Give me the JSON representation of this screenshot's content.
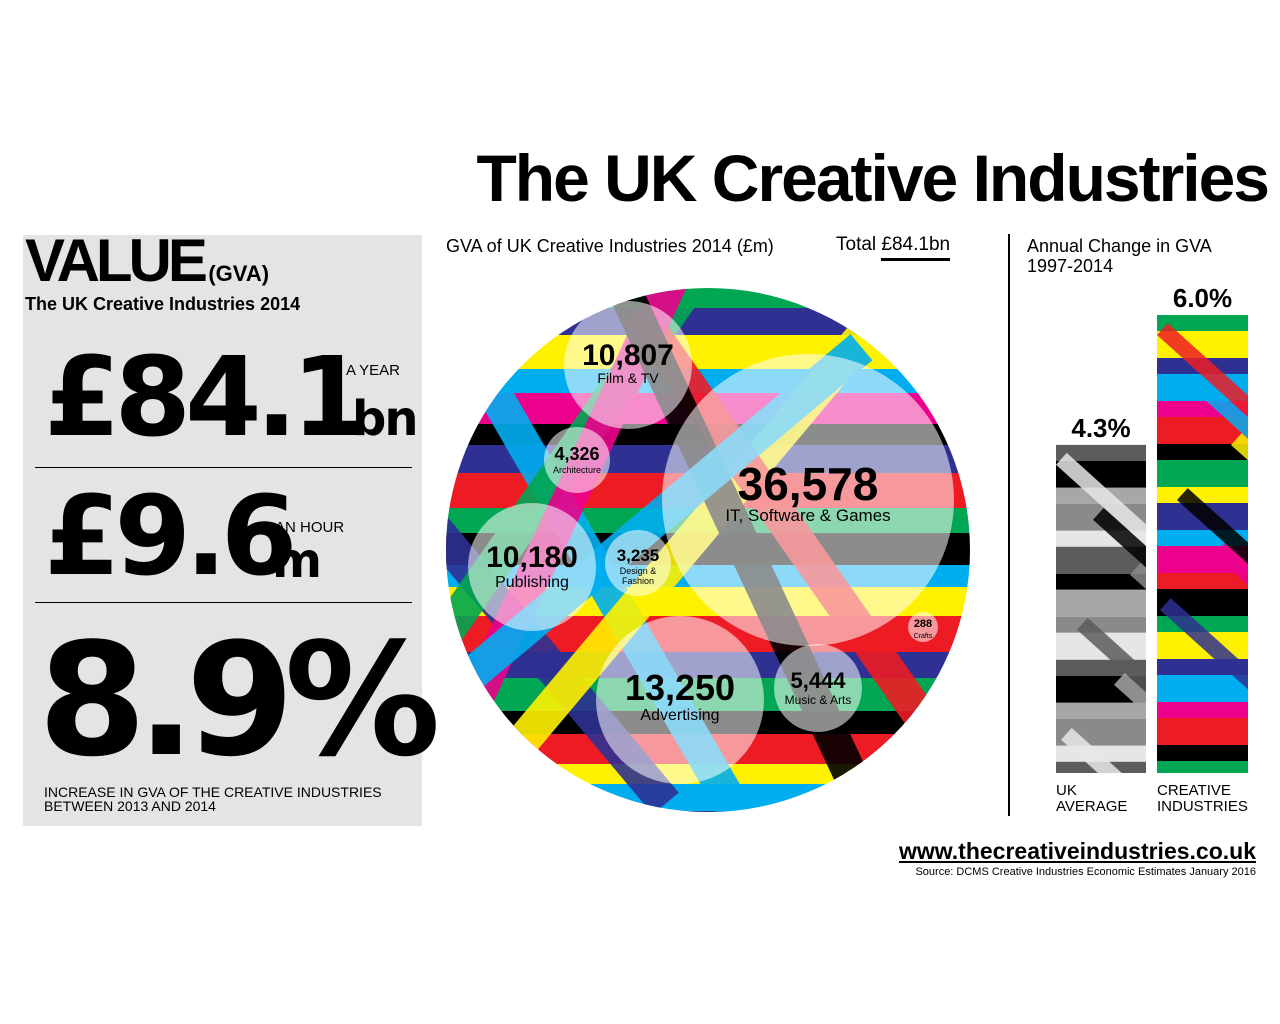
{
  "title": "The UK Creative Industries",
  "value_panel": {
    "heading": "VALUE",
    "heading_suffix": "(GVA)",
    "subheading": "The UK Creative Industries 2014",
    "stat1": {
      "value": "£84.1",
      "unit": "bn",
      "label": "A YEAR"
    },
    "stat2": {
      "value": "£9.6",
      "unit": "m",
      "label": "AN HOUR"
    },
    "stat3": {
      "value": "8.9%",
      "caption_line1": "INCREASE IN GVA OF THE CREATIVE INDUSTRIES",
      "caption_line2": "BETWEEN 2013 AND 2014"
    }
  },
  "chart_data": [
    {
      "type": "bubble",
      "title": "GVA of UK Creative Industries 2014 (£m)",
      "total_prefix": "Total",
      "total_value": "£84.1bn",
      "items": [
        {
          "label": "IT, Software & Games",
          "value": 36578,
          "value_label": "36,578"
        },
        {
          "label": "Advertising",
          "value": 13250,
          "value_label": "13,250"
        },
        {
          "label": "Film & TV",
          "value": 10807,
          "value_label": "10,807"
        },
        {
          "label": "Publishing",
          "value": 10180,
          "value_label": "10,180"
        },
        {
          "label": "Music & Arts",
          "value": 5444,
          "value_label": "5,444"
        },
        {
          "label": "Architecture",
          "value": 4326,
          "value_label": "4,326"
        },
        {
          "label": "Design & Fashion",
          "label_lines": [
            "Design &",
            "Fashion"
          ],
          "value": 3235,
          "value_label": "3,235"
        },
        {
          "label": "Crafts",
          "value": 288,
          "value_label": "288"
        }
      ]
    },
    {
      "type": "bar",
      "title_line1": "Annual Change in GVA",
      "title_line2": "1997-2014",
      "categories": [
        {
          "lines": [
            "UK",
            "AVERAGE"
          ]
        },
        {
          "lines": [
            "CREATIVE",
            "INDUSTRIES"
          ]
        }
      ],
      "values": [
        4.3,
        6.0
      ],
      "value_labels": [
        "4.3%",
        "6.0%"
      ],
      "unit": "%"
    }
  ],
  "footer": {
    "url": "www.thecreativeindustries.co.uk",
    "source": "Source: DCMS Creative Industries Economic Estimates January 2016"
  },
  "colors": {
    "panel_bg": "#e3e4e5",
    "stripes": [
      "#2e3192",
      "#00a651",
      "#ed1c24",
      "#00aeef",
      "#fff200",
      "#000000",
      "#ec008c"
    ],
    "greys": [
      "#5c5c5c",
      "#a7a7a7",
      "#e6e6e6",
      "#000000",
      "#8a8a8a"
    ]
  }
}
